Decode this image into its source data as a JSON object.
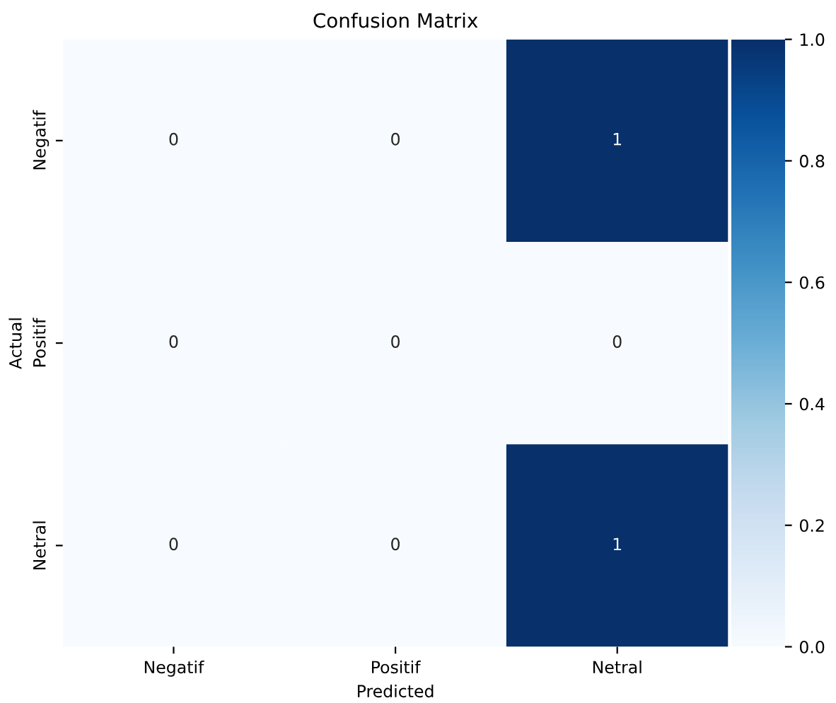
{
  "chart_data": {
    "type": "heatmap",
    "title": "Confusion Matrix",
    "xlabel": "Predicted",
    "ylabel": "Actual",
    "categories": [
      "Negatif",
      "Positif",
      "Netral"
    ],
    "y_categories": [
      "Negatif",
      "Positif",
      "Netral"
    ],
    "cells": [
      [
        0,
        0,
        1
      ],
      [
        0,
        0,
        0
      ],
      [
        0,
        0,
        1
      ]
    ],
    "data_labels": true,
    "clim": [
      0,
      1
    ],
    "cticks": [
      {
        "value": 0,
        "label": "0.0"
      },
      {
        "value": 0.2,
        "label": "0.2"
      },
      {
        "value": 0.4,
        "label": "0.4"
      },
      {
        "value": 0.6,
        "label": "0.6"
      },
      {
        "value": 0.8,
        "label": "0.8"
      },
      {
        "value": 1,
        "label": "1.0"
      }
    ]
  }
}
